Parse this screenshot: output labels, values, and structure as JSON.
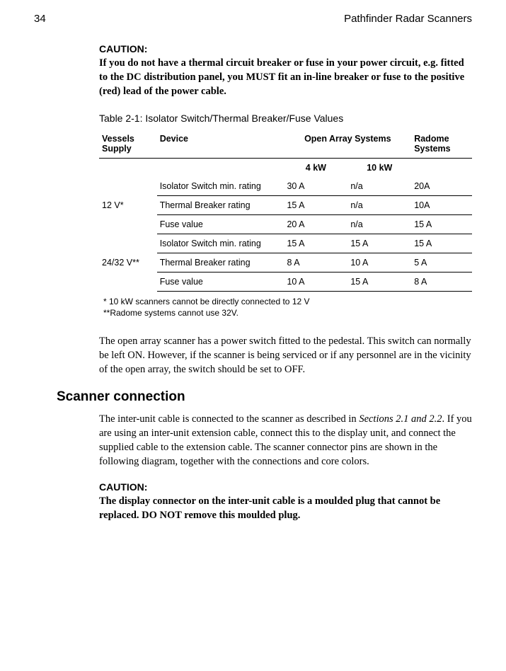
{
  "header": {
    "page_number": "34",
    "doc_title": "Pathfinder Radar Scanners"
  },
  "caution1": {
    "label": "CAUTION:",
    "body": "If you do not have a thermal circuit breaker or fuse in your power circuit, e.g. fitted to the DC distribution panel, you MUST fit an in-line breaker or fuse to the positive (red) lead of the power cable."
  },
  "table": {
    "caption": "Table 2-1: Isolator Switch/Thermal Breaker/Fuse Values",
    "head": {
      "supply": "Vessels Supply",
      "device": "Device",
      "open_array": "Open Array Systems",
      "sub_4kw": "4 kW",
      "sub_10kw": "10 kW",
      "radome": "Radome Systems"
    },
    "group1": {
      "supply": "12 V*",
      "rows": [
        {
          "device": "Isolator Switch min. rating",
          "v4": "30 A",
          "v10": "n/a",
          "rad": "20A"
        },
        {
          "device": "Thermal Breaker rating",
          "v4": "15 A",
          "v10": "n/a",
          "rad": "10A"
        },
        {
          "device": "Fuse value",
          "v4": "20 A",
          "v10": "n/a",
          "rad": "15 A"
        }
      ]
    },
    "group2": {
      "supply": "24/32 V**",
      "rows": [
        {
          "device": "Isolator Switch min. rating",
          "v4": "15 A",
          "v10": "15 A",
          "rad": "15 A"
        },
        {
          "device": "Thermal Breaker rating",
          "v4": "8 A",
          "v10": "10 A",
          "rad": " 5 A"
        },
        {
          "device": "Fuse value",
          "v4": "10 A",
          "v10": "15 A",
          "rad": " 8 A"
        }
      ]
    },
    "footnote1": "* 10 kW scanners cannot be directly connected to 12 V",
    "footnote2": "**Radome systems cannot use 32V."
  },
  "para1": "The open array scanner has a power switch fitted to the pedestal. This switch can normally be left ON. However, if the scanner is being serviced or if any personnel are in the vicinity of the open array, the switch should be set to OFF.",
  "section_title": "Scanner connection",
  "para2_pre": "The inter-unit cable is connected to the scanner as described in ",
  "para2_italic": "Sections 2.1 and 2.2",
  "para2_post": ". If you are using an inter-unit extension cable, connect this to the display unit, and connect the supplied cable to the extension cable. The scanner connector pins are shown in the following diagram, together with the connections and core colors.",
  "caution2": {
    "label": "CAUTION:",
    "body": "The display connector on the inter-unit cable is a moulded plug that cannot be replaced. DO NOT remove this moulded plug."
  }
}
